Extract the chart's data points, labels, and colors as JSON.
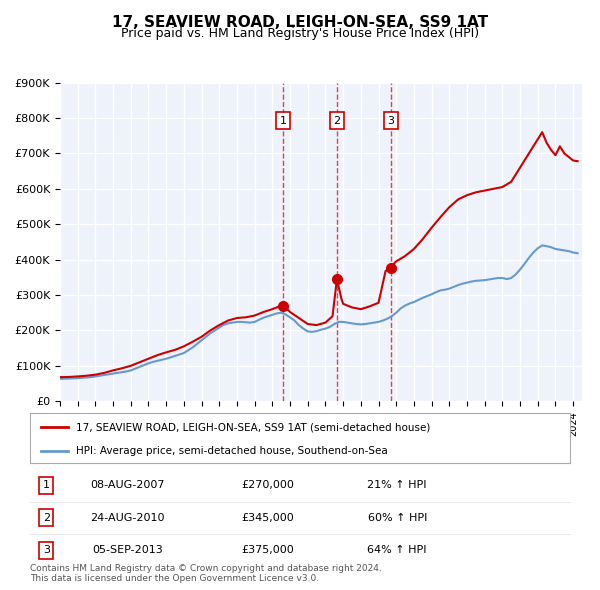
{
  "title": "17, SEAVIEW ROAD, LEIGH-ON-SEA, SS9 1AT",
  "subtitle": "Price paid vs. HM Land Registry's House Price Index (HPI)",
  "xlim_start": 1995.0,
  "xlim_end": 2024.5,
  "ylim_min": 0,
  "ylim_max": 900000,
  "ytick_labels": [
    "£0",
    "£100K",
    "£200K",
    "£300K",
    "£400K",
    "£500K",
    "£600K",
    "£700K",
    "£800K",
    "£900K"
  ],
  "ytick_values": [
    0,
    100000,
    200000,
    300000,
    400000,
    500000,
    600000,
    700000,
    800000,
    900000
  ],
  "bg_color": "#eef2fb",
  "grid_color": "#ffffff",
  "house_color": "#cc0000",
  "hpi_color": "#6699cc",
  "transactions": [
    {
      "label": "1",
      "date": "08-AUG-2007",
      "year": 2007.6,
      "price": 270000,
      "pct": "21%",
      "dir": "↑"
    },
    {
      "label": "2",
      "date": "24-AUG-2010",
      "year": 2010.65,
      "price": 345000,
      "pct": "60%",
      "dir": "↑"
    },
    {
      "label": "3",
      "date": "05-SEP-2013",
      "year": 2013.69,
      "price": 375000,
      "pct": "64%",
      "dir": "↑"
    }
  ],
  "legend_house_label": "17, SEAVIEW ROAD, LEIGH-ON-SEA, SS9 1AT (semi-detached house)",
  "legend_hpi_label": "HPI: Average price, semi-detached house, Southend-on-Sea",
  "footnote": "Contains HM Land Registry data © Crown copyright and database right 2024.\nThis data is licensed under the Open Government Licence v3.0.",
  "hpi_data": {
    "years": [
      1995.0,
      1995.25,
      1995.5,
      1995.75,
      1996.0,
      1996.25,
      1996.5,
      1996.75,
      1997.0,
      1997.25,
      1997.5,
      1997.75,
      1998.0,
      1998.25,
      1998.5,
      1998.75,
      1999.0,
      1999.25,
      1999.5,
      1999.75,
      2000.0,
      2000.25,
      2000.5,
      2000.75,
      2001.0,
      2001.25,
      2001.5,
      2001.75,
      2002.0,
      2002.25,
      2002.5,
      2002.75,
      2003.0,
      2003.25,
      2003.5,
      2003.75,
      2004.0,
      2004.25,
      2004.5,
      2004.75,
      2005.0,
      2005.25,
      2005.5,
      2005.75,
      2006.0,
      2006.25,
      2006.5,
      2006.75,
      2007.0,
      2007.25,
      2007.5,
      2007.75,
      2008.0,
      2008.25,
      2008.5,
      2008.75,
      2009.0,
      2009.25,
      2009.5,
      2009.75,
      2010.0,
      2010.25,
      2010.5,
      2010.75,
      2011.0,
      2011.25,
      2011.5,
      2011.75,
      2012.0,
      2012.25,
      2012.5,
      2012.75,
      2013.0,
      2013.25,
      2013.5,
      2013.75,
      2014.0,
      2014.25,
      2014.5,
      2014.75,
      2015.0,
      2015.25,
      2015.5,
      2015.75,
      2016.0,
      2016.25,
      2016.5,
      2016.75,
      2017.0,
      2017.25,
      2017.5,
      2017.75,
      2018.0,
      2018.25,
      2018.5,
      2018.75,
      2019.0,
      2019.25,
      2019.5,
      2019.75,
      2020.0,
      2020.25,
      2020.5,
      2020.75,
      2021.0,
      2021.25,
      2021.5,
      2021.75,
      2022.0,
      2022.25,
      2022.5,
      2022.75,
      2023.0,
      2023.25,
      2023.5,
      2023.75,
      2024.0,
      2024.25
    ],
    "values": [
      63000,
      63500,
      64000,
      64500,
      65000,
      66000,
      67000,
      68000,
      70000,
      72000,
      74000,
      76000,
      78000,
      80000,
      82000,
      84000,
      87000,
      92000,
      97000,
      102000,
      107000,
      111000,
      114000,
      117000,
      120000,
      124000,
      128000,
      132000,
      136000,
      144000,
      152000,
      162000,
      172000,
      182000,
      192000,
      200000,
      208000,
      216000,
      220000,
      222000,
      224000,
      224000,
      223000,
      222000,
      224000,
      230000,
      236000,
      240000,
      244000,
      248000,
      250000,
      245000,
      237000,
      228000,
      215000,
      205000,
      197000,
      196000,
      198000,
      202000,
      205000,
      210000,
      218000,
      224000,
      224000,
      222000,
      220000,
      218000,
      217000,
      218000,
      220000,
      222000,
      224000,
      228000,
      233000,
      240000,
      250000,
      262000,
      270000,
      276000,
      280000,
      286000,
      292000,
      297000,
      302000,
      308000,
      313000,
      315000,
      318000,
      323000,
      328000,
      332000,
      335000,
      338000,
      340000,
      341000,
      342000,
      344000,
      346000,
      348000,
      348000,
      345000,
      348000,
      358000,
      372000,
      388000,
      405000,
      420000,
      432000,
      440000,
      438000,
      435000,
      430000,
      428000,
      426000,
      424000,
      420000,
      418000
    ]
  },
  "house_data": {
    "years": [
      1995.0,
      1995.5,
      1996.0,
      1996.5,
      1997.0,
      1997.5,
      1998.0,
      1998.5,
      1999.0,
      1999.5,
      2000.0,
      2000.5,
      2001.0,
      2001.5,
      2002.0,
      2002.5,
      2003.0,
      2003.5,
      2004.0,
      2004.5,
      2005.0,
      2005.5,
      2006.0,
      2006.5,
      2007.0,
      2007.4,
      2007.6,
      2007.8,
      2008.0,
      2008.5,
      2009.0,
      2009.5,
      2010.0,
      2010.4,
      2010.65,
      2010.9,
      2011.0,
      2011.5,
      2012.0,
      2012.5,
      2013.0,
      2013.4,
      2013.69,
      2013.9,
      2014.0,
      2014.5,
      2015.0,
      2015.5,
      2016.0,
      2016.5,
      2017.0,
      2017.5,
      2018.0,
      2018.5,
      2019.0,
      2019.5,
      2020.0,
      2020.5,
      2021.0,
      2021.5,
      2022.0,
      2022.25,
      2022.5,
      2022.75,
      2023.0,
      2023.25,
      2023.5,
      2023.75,
      2024.0,
      2024.25
    ],
    "values": [
      68000,
      68500,
      70000,
      72000,
      75000,
      80000,
      87000,
      93000,
      100000,
      110000,
      120000,
      130000,
      138000,
      145000,
      155000,
      168000,
      182000,
      200000,
      215000,
      228000,
      235000,
      237000,
      242000,
      252000,
      260000,
      268000,
      270000,
      262000,
      252000,
      235000,
      218000,
      215000,
      222000,
      240000,
      345000,
      290000,
      275000,
      265000,
      260000,
      268000,
      278000,
      368000,
      375000,
      390000,
      395000,
      410000,
      430000,
      458000,
      490000,
      520000,
      548000,
      570000,
      582000,
      590000,
      595000,
      600000,
      605000,
      620000,
      660000,
      700000,
      740000,
      760000,
      730000,
      710000,
      695000,
      720000,
      700000,
      690000,
      680000,
      678000
    ]
  }
}
